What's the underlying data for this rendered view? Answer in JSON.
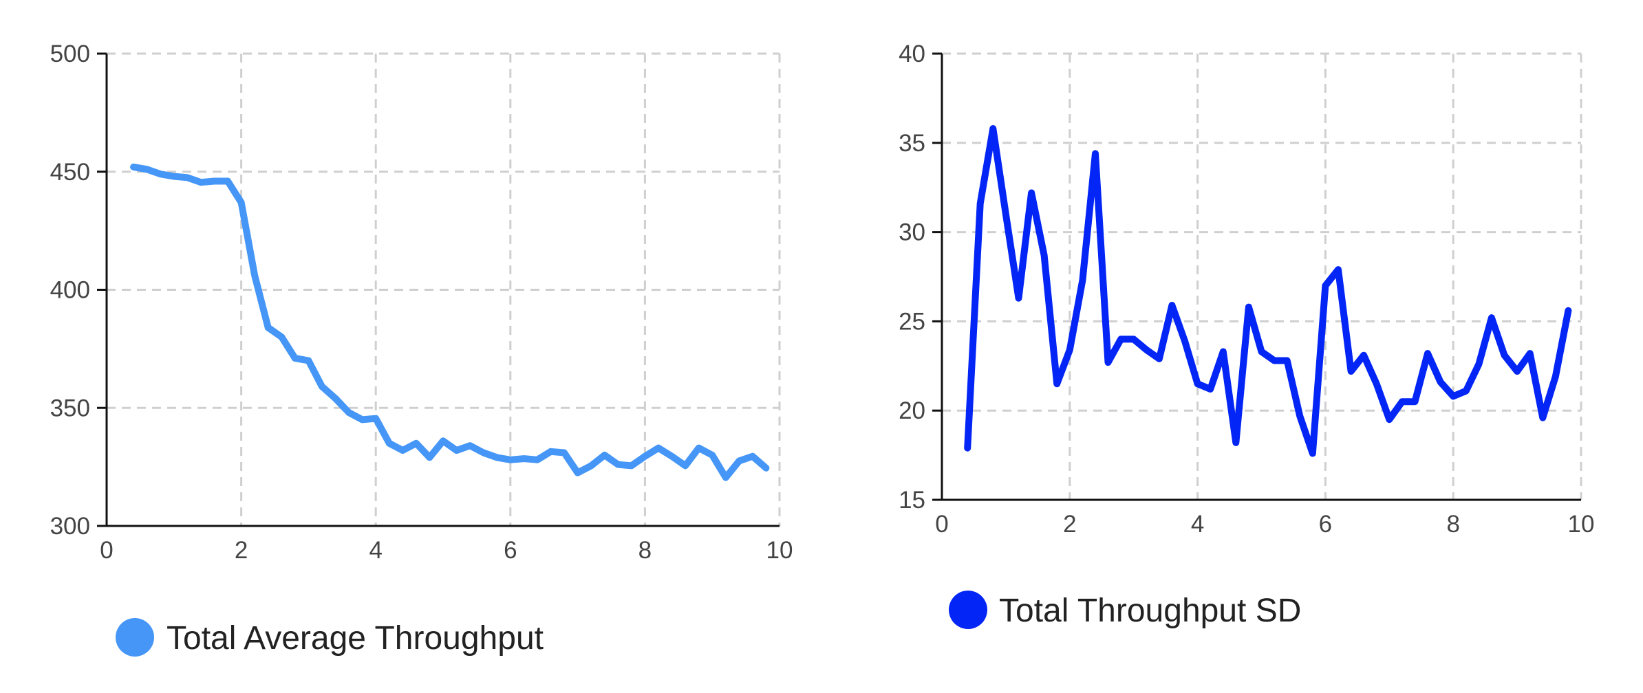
{
  "chart_data": [
    {
      "type": "line",
      "title": "",
      "xlabel": "",
      "ylabel": "",
      "xlim": [
        0,
        10
      ],
      "ylim": [
        300,
        500
      ],
      "xticks": [
        "0",
        "2",
        "4",
        "6",
        "8",
        "10"
      ],
      "yticks": [
        "300",
        "350",
        "400",
        "450",
        "500"
      ],
      "grid": true,
      "legend_position": "bottom-left",
      "series": [
        {
          "name": "Total Average Throughput",
          "color": "#4596f6",
          "x": [
            0.4,
            0.6,
            0.8,
            1.0,
            1.2,
            1.4,
            1.6,
            1.8,
            2.0,
            2.2,
            2.4,
            2.6,
            2.8,
            3.0,
            3.2,
            3.4,
            3.6,
            3.8,
            4.0,
            4.2,
            4.4,
            4.6,
            4.8,
            5.0,
            5.2,
            5.4,
            5.6,
            5.8,
            6.0,
            6.2,
            6.4,
            6.6,
            6.8,
            7.0,
            7.2,
            7.4,
            7.6,
            7.8,
            8.0,
            8.2,
            8.4,
            8.6,
            8.8,
            9.0,
            9.2,
            9.4,
            9.6,
            9.8
          ],
          "y": [
            452,
            451,
            449,
            448,
            447.5,
            445.5,
            446,
            446,
            437,
            406,
            384,
            380,
            371,
            370,
            359,
            354,
            348,
            345,
            345.5,
            335,
            332,
            335,
            329,
            336,
            332,
            334,
            331,
            329,
            328,
            328.5,
            328,
            331.5,
            331,
            322.5,
            325.5,
            330,
            326,
            325.5,
            329.5,
            333,
            329.5,
            325.5,
            333,
            330,
            320.5,
            327.5,
            329.5,
            324.5
          ]
        }
      ]
    },
    {
      "type": "line",
      "title": "",
      "xlabel": "",
      "ylabel": "",
      "xlim": [
        0,
        10
      ],
      "ylim": [
        15,
        40
      ],
      "xticks": [
        "0",
        "2",
        "4",
        "6",
        "8",
        "10"
      ],
      "yticks": [
        "15",
        "20",
        "25",
        "30",
        "35",
        "40"
      ],
      "grid": true,
      "legend_position": "bottom-left",
      "series": [
        {
          "name": "Total Throughput SD",
          "color": "#0325f5",
          "x": [
            0.4,
            0.6,
            0.8,
            1.0,
            1.2,
            1.4,
            1.6,
            1.8,
            2.0,
            2.2,
            2.4,
            2.6,
            2.8,
            3.0,
            3.2,
            3.4,
            3.6,
            3.8,
            4.0,
            4.2,
            4.4,
            4.6,
            4.8,
            5.0,
            5.2,
            5.4,
            5.6,
            5.8,
            6.0,
            6.2,
            6.4,
            6.6,
            6.8,
            7.0,
            7.2,
            7.4,
            7.6,
            7.8,
            8.0,
            8.2,
            8.4,
            8.6,
            8.8,
            9.0,
            9.2,
            9.4,
            9.6,
            9.8
          ],
          "y": [
            17.9,
            31.6,
            35.8,
            31.0,
            26.3,
            32.2,
            28.7,
            21.5,
            23.4,
            27.3,
            34.4,
            22.7,
            24.0,
            24.0,
            23.4,
            22.9,
            25.9,
            23.9,
            21.5,
            21.2,
            23.3,
            18.2,
            25.8,
            23.3,
            22.8,
            22.8,
            19.7,
            17.6,
            27.0,
            27.9,
            22.2,
            23.1,
            21.5,
            19.5,
            20.5,
            20.5,
            23.2,
            21.6,
            20.8,
            21.1,
            22.6,
            25.2,
            23.1,
            22.2,
            23.2,
            19.6,
            21.9,
            25.6
          ]
        }
      ]
    }
  ]
}
